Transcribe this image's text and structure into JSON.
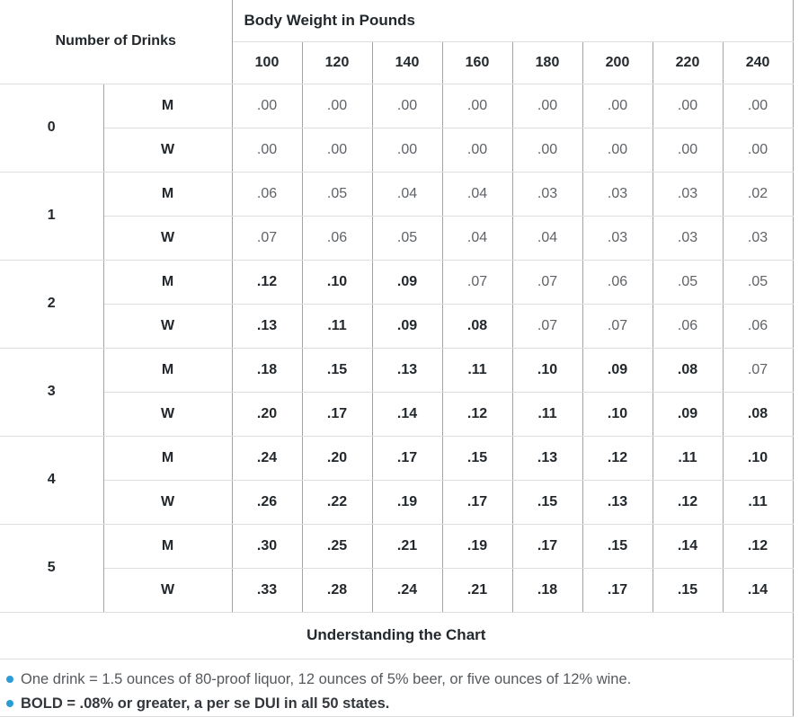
{
  "chart_data": {
    "type": "table",
    "title": "Understanding the Chart",
    "col_group_label": "Number of Drinks",
    "col_span_label": "Body Weight in Pounds",
    "weights": [
      "100",
      "120",
      "140",
      "160",
      "180",
      "200",
      "220",
      "240"
    ],
    "sex_labels": {
      "m": "M",
      "w": "W"
    },
    "bold_threshold": 0.08,
    "groups": [
      {
        "drinks": "0",
        "m": [
          ".00",
          ".00",
          ".00",
          ".00",
          ".00",
          ".00",
          ".00",
          ".00"
        ],
        "w": [
          ".00",
          ".00",
          ".00",
          ".00",
          ".00",
          ".00",
          ".00",
          ".00"
        ]
      },
      {
        "drinks": "1",
        "m": [
          ".06",
          ".05",
          ".04",
          ".04",
          ".03",
          ".03",
          ".03",
          ".02"
        ],
        "w": [
          ".07",
          ".06",
          ".05",
          ".04",
          ".04",
          ".03",
          ".03",
          ".03"
        ]
      },
      {
        "drinks": "2",
        "m": [
          ".12",
          ".10",
          ".09",
          ".07",
          ".07",
          ".06",
          ".05",
          ".05"
        ],
        "w": [
          ".13",
          ".11",
          ".09",
          ".08",
          ".07",
          ".07",
          ".06",
          ".06"
        ]
      },
      {
        "drinks": "3",
        "m": [
          ".18",
          ".15",
          ".13",
          ".11",
          ".10",
          ".09",
          ".08",
          ".07"
        ],
        "w": [
          ".20",
          ".17",
          ".14",
          ".12",
          ".11",
          ".10",
          ".09",
          ".08"
        ]
      },
      {
        "drinks": "4",
        "m": [
          ".24",
          ".20",
          ".17",
          ".15",
          ".13",
          ".12",
          ".11",
          ".10"
        ],
        "w": [
          ".26",
          ".22",
          ".19",
          ".17",
          ".15",
          ".13",
          ".12",
          ".11"
        ]
      },
      {
        "drinks": "5",
        "m": [
          ".30",
          ".25",
          ".21",
          ".19",
          ".17",
          ".15",
          ".14",
          ".12"
        ],
        "w": [
          ".33",
          ".28",
          ".24",
          ".21",
          ".18",
          ".17",
          ".15",
          ".14"
        ]
      }
    ],
    "footer_title": "Understanding the Chart",
    "notes": [
      "One drink = 1.5 ounces of 80-proof liquor, 12 ounces of 5% beer, or five ounces of 12% wine.",
      "BOLD = .08% or greater, a per se DUI in all 50 states."
    ],
    "legend_rule": "BOLD values indicate .08% BAC or greater",
    "layout": {
      "grid": "on",
      "bold_notes_index": 1
    }
  },
  "colors": {
    "bullet_accent": "#2b9cd8",
    "header_text": "#23282d",
    "value_text": "#5f6368",
    "grid_vertical": "#a3a3a3",
    "grid_horizontal": "#dedede"
  }
}
